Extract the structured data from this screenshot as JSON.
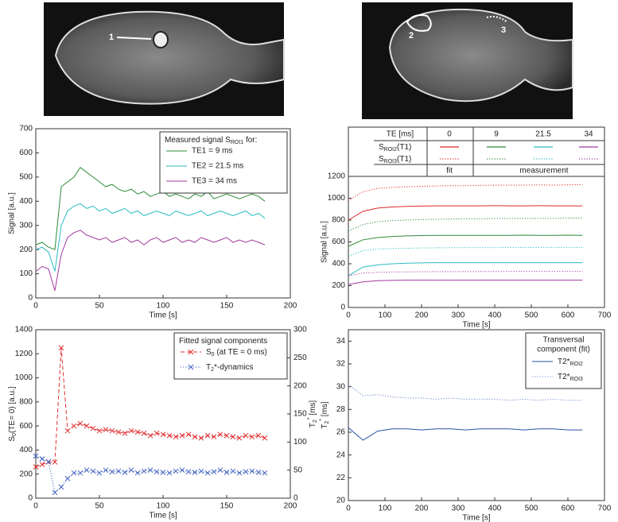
{
  "images": [
    {
      "labels": [
        "1"
      ]
    },
    {
      "labels": [
        "2",
        "3"
      ]
    }
  ],
  "chart_data": [
    {
      "type": "line",
      "xlabel": "Time [s]",
      "ylabel": "Signal [a.u.]",
      "x": [
        0,
        5,
        10,
        15,
        20,
        25,
        30,
        35,
        40,
        45,
        50,
        55,
        60,
        65,
        70,
        75,
        80,
        85,
        90,
        95,
        100,
        105,
        110,
        115,
        120,
        125,
        130,
        135,
        140,
        145,
        150,
        155,
        160,
        165,
        170,
        175,
        180
      ],
      "xlim": [
        0,
        200
      ],
      "xticks": [
        0,
        50,
        100,
        150,
        200
      ],
      "ylim": [
        0,
        700
      ],
      "yticks": [
        0,
        100,
        200,
        300,
        400,
        500,
        600,
        700
      ],
      "legend": "upper right",
      "legend_title": [
        "Measured signal S",
        {
          "sub": "ROI1"
        },
        " for:"
      ],
      "series": [
        {
          "name": "TE1 = 9 ms",
          "color": "#2e8b3a",
          "values": [
            220,
            230,
            210,
            200,
            460,
            480,
            500,
            540,
            520,
            500,
            480,
            460,
            470,
            450,
            440,
            450,
            430,
            440,
            420,
            430,
            440,
            420,
            430,
            420,
            410,
            430,
            420,
            440,
            410,
            420,
            430,
            420,
            410,
            420,
            430,
            420,
            400
          ]
        },
        {
          "name": "TE2 = 21.5 ms",
          "color": "#2bbcc0",
          "values": [
            200,
            210,
            190,
            110,
            300,
            360,
            380,
            390,
            370,
            380,
            360,
            370,
            350,
            360,
            370,
            350,
            360,
            340,
            350,
            360,
            350,
            340,
            360,
            350,
            340,
            350,
            360,
            340,
            350,
            360,
            350,
            340,
            350,
            360,
            340,
            350,
            330
          ]
        },
        {
          "name": "TE3 = 34 ms",
          "color": "#a03a9e",
          "values": [
            110,
            130,
            120,
            30,
            180,
            250,
            270,
            280,
            260,
            250,
            240,
            250,
            230,
            240,
            250,
            230,
            240,
            220,
            240,
            250,
            230,
            240,
            250,
            230,
            240,
            230,
            250,
            240,
            230,
            240,
            250,
            230,
            240,
            230,
            240,
            230,
            220
          ]
        }
      ]
    },
    {
      "type": "line",
      "xlabel": "Time [s]",
      "ylabel": "Signal [a.u.]",
      "x": [
        0,
        40,
        80,
        120,
        160,
        200,
        240,
        280,
        320,
        360,
        400,
        440,
        480,
        520,
        560,
        600,
        640
      ],
      "xlim": [
        0,
        700
      ],
      "xticks": [
        0,
        100,
        200,
        300,
        400,
        500,
        600,
        700
      ],
      "ylim": [
        0,
        1200
      ],
      "yticks": [
        0,
        200,
        400,
        600,
        800,
        1000,
        1200
      ],
      "table": {
        "header": [
          "TE [ms]",
          "0",
          "9",
          "21.5",
          "34"
        ],
        "rows": [
          [
            "S",
            {
              "sub": "ROI2"
            },
            "(T1)"
          ],
          [
            "S",
            {
              "sub": "ROI3"
            },
            "(T1)"
          ]
        ],
        "footer": [
          "fit",
          "measurement"
        ]
      },
      "series": [
        {
          "color": "#e02828",
          "values": [
            800,
            880,
            910,
            920,
            925,
            928,
            930,
            930,
            930,
            930,
            932,
            930,
            930,
            932,
            930,
            930,
            930
          ]
        },
        {
          "color": "#e02828",
          "dash": "dotted",
          "values": [
            980,
            1060,
            1090,
            1100,
            1105,
            1110,
            1112,
            1115,
            1115,
            1118,
            1120,
            1120,
            1120,
            1122,
            1120,
            1122,
            1125
          ]
        },
        {
          "color": "#2e8b3a",
          "values": [
            560,
            620,
            640,
            650,
            655,
            658,
            660,
            660,
            660,
            660,
            660,
            660,
            662,
            660,
            660,
            662,
            660
          ]
        },
        {
          "color": "#2e8b3a",
          "dash": "dotted",
          "values": [
            700,
            760,
            785,
            795,
            800,
            805,
            808,
            810,
            812,
            812,
            815,
            815,
            815,
            816,
            815,
            818,
            818
          ]
        },
        {
          "color": "#2bbcc0",
          "values": [
            290,
            370,
            390,
            400,
            405,
            408,
            410,
            410,
            410,
            410,
            410,
            410,
            410,
            410,
            410,
            410,
            410
          ]
        },
        {
          "color": "#2bbcc0",
          "dash": "dotted",
          "values": [
            470,
            520,
            535,
            540,
            542,
            545,
            546,
            547,
            548,
            548,
            548,
            549,
            549,
            550,
            550,
            550,
            550
          ]
        },
        {
          "color": "#a03a9e",
          "values": [
            210,
            235,
            245,
            248,
            250,
            250,
            250,
            250,
            250,
            250,
            250,
            250,
            250,
            250,
            250,
            250,
            250
          ]
        },
        {
          "color": "#a03a9e",
          "dash": "dotted",
          "values": [
            290,
            315,
            322,
            325,
            326,
            327,
            328,
            328,
            328,
            329,
            329,
            330,
            330,
            330,
            330,
            330,
            330
          ]
        }
      ]
    },
    {
      "type": "line",
      "xlabel": "Time [s]",
      "ylabel": [
        "S",
        {
          "sub": "0"
        },
        "(TE= 0) [a.u.]"
      ],
      "y2label": [
        "T",
        {
          "sub": "2"
        },
        {
          "sup": "*"
        },
        " [ms]"
      ],
      "x": [
        0,
        5,
        10,
        15,
        20,
        25,
        30,
        35,
        40,
        45,
        50,
        55,
        60,
        65,
        70,
        75,
        80,
        85,
        90,
        95,
        100,
        105,
        110,
        115,
        120,
        125,
        130,
        135,
        140,
        145,
        150,
        155,
        160,
        165,
        170,
        175,
        180
      ],
      "xlim": [
        0,
        200
      ],
      "xticks": [
        0,
        50,
        100,
        150,
        200
      ],
      "ylim": [
        0,
        1400
      ],
      "yticks": [
        0,
        200,
        400,
        600,
        800,
        1000,
        1200,
        1400
      ],
      "y2lim": [
        0,
        300
      ],
      "y2ticks": [
        0,
        50,
        100,
        150,
        200,
        250,
        300
      ],
      "legend": "upper right",
      "legend_title": [
        "Fitted signal components"
      ],
      "series": [
        {
          "name": [
            "S",
            {
              "sub": "0"
            },
            " (at TE = 0 ms)"
          ],
          "color": "#e03030",
          "dash": "dashed",
          "marker": "x",
          "values": [
            260,
            280,
            300,
            300,
            1250,
            560,
            600,
            620,
            600,
            580,
            560,
            570,
            560,
            550,
            540,
            560,
            550,
            540,
            520,
            540,
            530,
            520,
            510,
            520,
            530,
            510,
            500,
            520,
            510,
            530,
            520,
            510,
            500,
            520,
            510,
            520,
            500
          ]
        },
        {
          "name": [
            "T",
            {
              "sub": "2"
            },
            "*-dynamics"
          ],
          "color": "#4060c0",
          "dash": "dotted",
          "marker": "x",
          "axis": "y2",
          "values": [
            75,
            70,
            65,
            10,
            20,
            35,
            45,
            45,
            50,
            48,
            45,
            50,
            47,
            48,
            46,
            50,
            45,
            48,
            50,
            47,
            46,
            45,
            48,
            50,
            47,
            46,
            48,
            45,
            47,
            50,
            46,
            48,
            45,
            47,
            48,
            46,
            45
          ]
        }
      ]
    },
    {
      "type": "line",
      "xlabel": "Time [s]",
      "ylabel": [
        "T",
        {
          "sub": "2"
        },
        {
          "sup": "*"
        },
        " [ms]"
      ],
      "x": [
        0,
        40,
        80,
        120,
        160,
        200,
        240,
        280,
        320,
        360,
        400,
        440,
        480,
        520,
        560,
        600,
        640
      ],
      "xlim": [
        0,
        700
      ],
      "xticks": [
        0,
        100,
        200,
        300,
        400,
        500,
        600,
        700
      ],
      "ylim": [
        20,
        35
      ],
      "yticks": [
        20,
        22,
        24,
        26,
        28,
        30,
        32,
        34
      ],
      "legend": "upper right",
      "legend_title_lines": [
        "Transversal",
        "component (fit)"
      ],
      "series": [
        {
          "name": [
            "T2*",
            {
              "sub": "ROI2"
            }
          ],
          "color": "#2a4fa8",
          "values": [
            26.4,
            25.3,
            26.1,
            26.3,
            26.3,
            26.2,
            26.3,
            26.3,
            26.2,
            26.3,
            26.3,
            26.3,
            26.2,
            26.3,
            26.3,
            26.2,
            26.2
          ]
        },
        {
          "name": [
            "T2*",
            {
              "sub": "ROI3"
            }
          ],
          "color": "#6a8ad0",
          "dash": "dotted",
          "values": [
            30.2,
            29.2,
            29.3,
            29.1,
            29.0,
            29.0,
            28.9,
            29.0,
            28.9,
            28.9,
            28.9,
            28.8,
            28.9,
            28.8,
            28.9,
            28.8,
            28.8
          ]
        }
      ]
    }
  ]
}
